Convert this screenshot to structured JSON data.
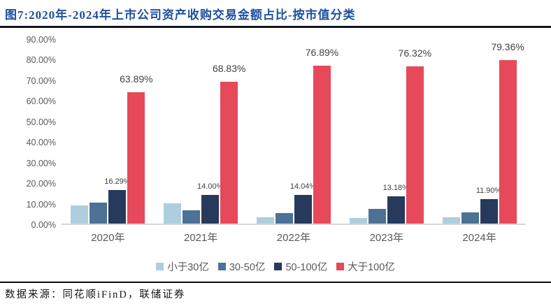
{
  "title": "图7:2020年-2024年上市公司资产收购交易金额占比-按市值分类",
  "chart_data": {
    "type": "bar",
    "title": "2020年-2024年上市公司资产收购交易金额占比-按市值分类",
    "categories": [
      "2020年",
      "2021年",
      "2022年",
      "2023年",
      "2024年"
    ],
    "series": [
      {
        "name": "小于30亿",
        "color": "#afcedd",
        "values": [
          9.0,
          10.0,
          3.0,
          2.6,
          3.2
        ],
        "data_labels": null
      },
      {
        "name": "30-50亿",
        "color": "#4c7296",
        "values": [
          10.2,
          6.6,
          5.0,
          7.1,
          5.3
        ],
        "data_labels": null
      },
      {
        "name": "50-100亿",
        "color": "#273a5b",
        "values": [
          16.29,
          14.0,
          14.04,
          13.18,
          11.9
        ],
        "data_labels": [
          "16.29%",
          "14.00%",
          "14.04%",
          "13.18%",
          "11.90%"
        ]
      },
      {
        "name": "大于100亿",
        "color": "#e6495a",
        "values": [
          63.89,
          68.83,
          76.89,
          76.32,
          79.36
        ],
        "data_labels": [
          "63.89%",
          "68.83%",
          "76.89%",
          "76.32%",
          "79.36%"
        ]
      }
    ],
    "ylim": [
      0,
      90
    ],
    "yticks": [
      "0.00%",
      "10.00%",
      "20.00%",
      "30.00%",
      "40.00%",
      "50.00%",
      "60.00%",
      "70.00%",
      "80.00%",
      "90.00%"
    ],
    "xlabel": "",
    "ylabel": "",
    "grid": false,
    "legend_position": "bottom"
  },
  "footer": {
    "source": "数据来源：同花顺iFinD，联储证券"
  },
  "colors": {
    "title_text": "#1d4fa0",
    "axis_text": "#595959",
    "data_label_text": "#404040",
    "divider": "#15151f",
    "baseline": "#d6d6d6"
  }
}
